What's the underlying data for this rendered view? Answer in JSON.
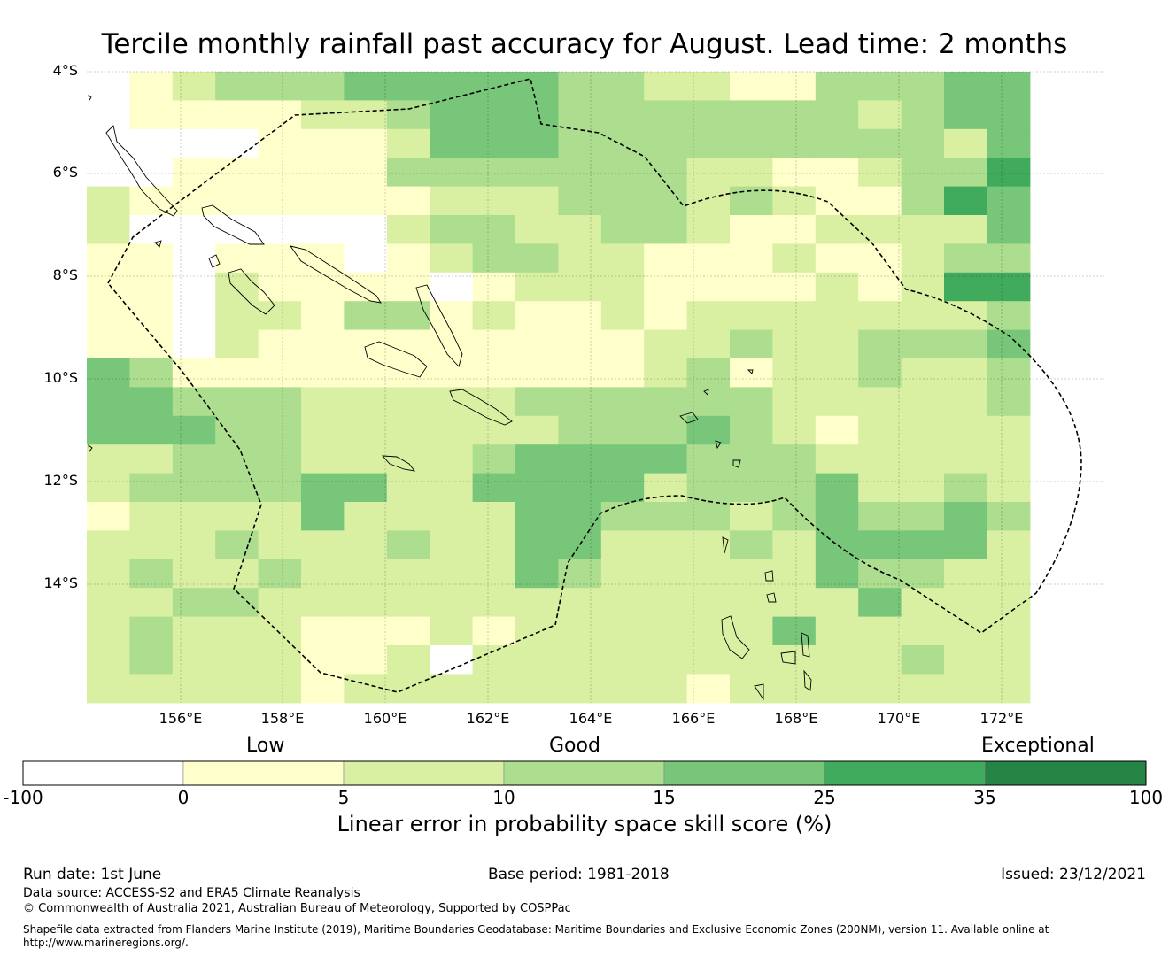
{
  "title": "Tercile monthly rainfall past accuracy for August. Lead time: 2 months",
  "map": {
    "lat_labels": [
      "4°S",
      "6°S",
      "8°S",
      "10°S",
      "12°S",
      "14°S"
    ],
    "lon_labels": [
      "156°E",
      "158°E",
      "160°E",
      "162°E",
      "164°E",
      "166°E",
      "168°E",
      "170°E",
      "172°E"
    ],
    "cell_levels": [
      "0123334444433221133344",
      "0111122344433333332344",
      "0000111244433333333324",
      "0011111333333322112335",
      "2111111122233323211354",
      "2000000233223321122224",
      "1101110123322111211233",
      "1102111101222111121255",
      "1102213312112122222223",
      "1102111111111223223334",
      "4311111111111231223223",
      "4433322222333333222223",
      "4443322222233343212222",
      "2233322223444433322222",
      "2333344224444233342232",
      "1222242222443332343343",
      "2223222322442223244442",
      "2322322222432222243322",
      "2233222222222222224222",
      "2322211121222222422222",
      "2322211202222222222322",
      "2222212222222212222222"
    ]
  },
  "legend": {
    "low_label": "Low",
    "good_label": "Good",
    "exceptional_label": "Exceptional",
    "ticks": [
      "-100",
      "0",
      "5",
      "10",
      "15",
      "25",
      "35",
      "100"
    ],
    "colors": [
      "#ffffff",
      "#ffffcc",
      "#d9f0a3",
      "#addd8e",
      "#78c679",
      "#41ab5d",
      "#238443"
    ],
    "title": "Linear error in probability space skill score (%)"
  },
  "footer": {
    "run_date": "Run date: 1st June",
    "base_period": "Base period: 1981-2018",
    "issued": "Issued: 23/12/2021",
    "data_source": "Data source: ACCESS-S2 and ERA5 Climate Reanalysis",
    "copyright": "© Commonwealth of Australia 2021, Australian Bureau of Meteorology, Supported by COSPPac",
    "shapefile_line1": "Shapefile data extracted from Flanders Marine Institute (2019), Maritime Boundaries Geodatabase: Maritime Boundaries and Exclusive Economic Zones (200NM), version 11. Available online at",
    "shapefile_line2": "http://www.marineregions.org/."
  }
}
